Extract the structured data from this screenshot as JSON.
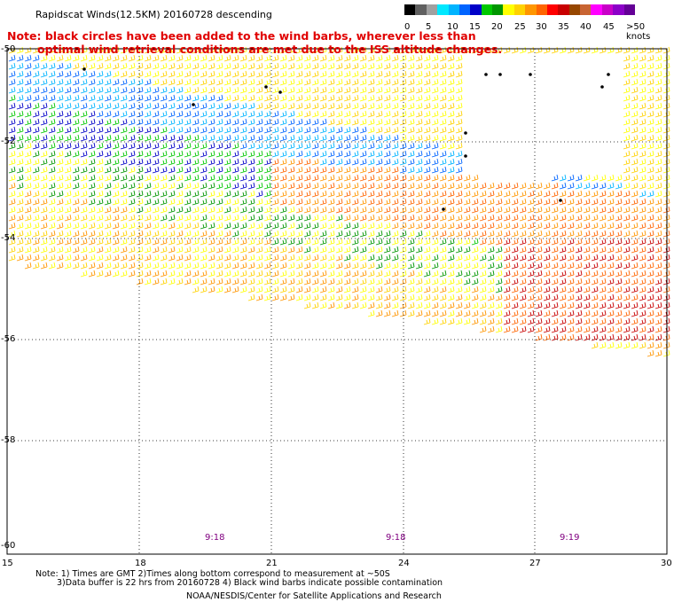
{
  "title": "Rapidscat Winds(12.5KM) 20160728 descending",
  "note": {
    "line1": "Note: black circles have been added to the wind barbs, wherever less than",
    "line2": "optimal wind retrieval conditions are met due to the ISS altitude changes."
  },
  "scale": {
    "labels": [
      "0",
      "5",
      "10",
      "15",
      "20",
      "25",
      "30",
      "35",
      "40",
      "45",
      ">50 knots"
    ],
    "colors": [
      "#000000",
      "#606060",
      "#a0a0a0",
      "#00e8ff",
      "#00b4ff",
      "#0064ff",
      "#0000c8",
      "#00c800",
      "#009600",
      "#ffff00",
      "#ffd200",
      "#ff9600",
      "#ff6400",
      "#ff0000",
      "#c80000",
      "#964600",
      "#c86432",
      "#ff00ff",
      "#c800c8",
      "#8c00c8",
      "#640096"
    ]
  },
  "axes": {
    "lat_labels": [
      "-50",
      "-52",
      "-54",
      "-56",
      "-58",
      "-60"
    ],
    "lon_labels": [
      "15",
      "18",
      "21",
      "24",
      "27",
      "30"
    ]
  },
  "times": [
    "9:18",
    "9:18",
    "9:19"
  ],
  "footer": {
    "line1": "Note: 1) Times are GMT 2)Times along bottom correspond to measurement at ~50S",
    "line2": "3)Data buffer is 22 hrs from 20160728 4) Black wind barbs indicate possible contamination",
    "line3": "NOAA/NESDIS/Center for Satellite Applications and Research"
  },
  "icons": {
    "wind_barb": "wind-barb-icon",
    "quality_flag": "black-circle-icon"
  }
}
